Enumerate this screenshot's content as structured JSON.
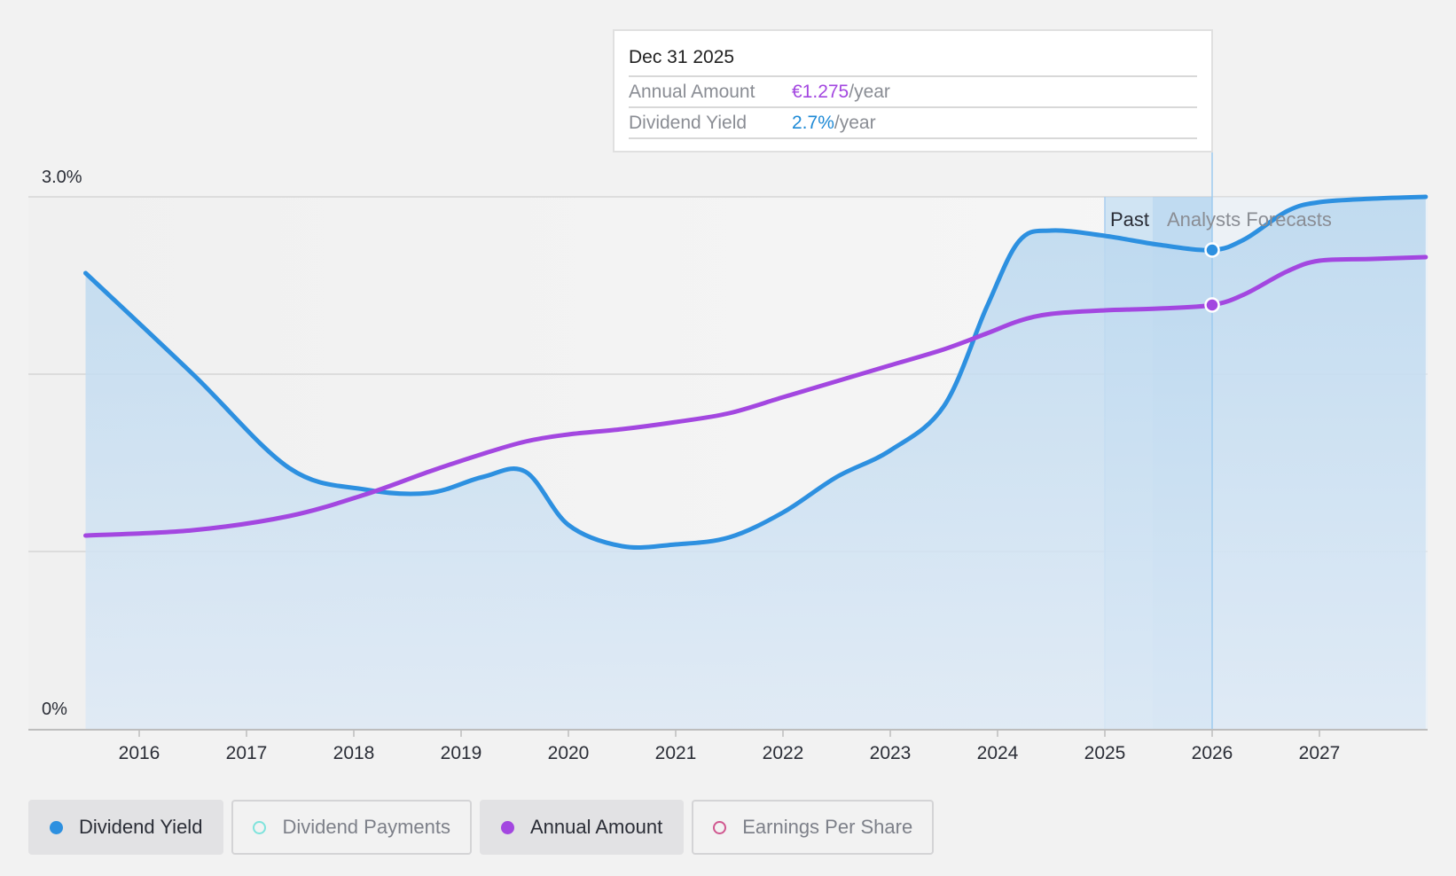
{
  "chart_data": {
    "type": "area",
    "y_tick_labels": [
      "3.0%",
      "0%"
    ],
    "ylim": [
      0,
      3.0
    ],
    "xlim": [
      2015.5,
      2027.99
    ],
    "x_tick_labels": [
      "2016",
      "2017",
      "2018",
      "2019",
      "2020",
      "2021",
      "2022",
      "2023",
      "2024",
      "2025",
      "2026",
      "2027"
    ],
    "past_label": "Past",
    "forecast_label": "Analysts Forecasts",
    "forecast_start": 2025.0,
    "cursor_x": 2026.0,
    "series": [
      {
        "name": "Dividend Yield",
        "color": "#2d90e0",
        "filled": true,
        "x": [
          2015.5,
          2016.5,
          2017.4,
          2018.1,
          2018.7,
          2019.2,
          2019.6,
          2020.0,
          2020.5,
          2021.0,
          2021.5,
          2022.0,
          2022.5,
          2023.0,
          2023.5,
          2023.9,
          2024.2,
          2024.5,
          2025.0,
          2025.5,
          2026.0,
          2026.3,
          2026.7,
          2027.0,
          2027.5,
          2027.99
        ],
        "y": [
          2.57,
          2.0,
          1.47,
          1.35,
          1.33,
          1.42,
          1.45,
          1.15,
          1.03,
          1.04,
          1.08,
          1.22,
          1.42,
          1.57,
          1.82,
          2.38,
          2.75,
          2.81,
          2.78,
          2.73,
          2.7,
          2.76,
          2.92,
          2.97,
          2.99,
          3.0
        ]
      },
      {
        "name": "Annual Amount",
        "color": "#a347e0",
        "filled": false,
        "x": [
          2015.5,
          2016.5,
          2017.4,
          2018.1,
          2018.7,
          2019.2,
          2019.6,
          2020.0,
          2020.5,
          2021.0,
          2021.5,
          2022.0,
          2022.5,
          2023.0,
          2023.5,
          2023.9,
          2024.2,
          2024.5,
          2025.0,
          2025.5,
          2026.0,
          2026.3,
          2026.7,
          2027.0,
          2027.5,
          2027.99
        ],
        "y": [
          1.09,
          1.12,
          1.2,
          1.32,
          1.45,
          1.55,
          1.62,
          1.66,
          1.69,
          1.73,
          1.78,
          1.87,
          1.96,
          2.05,
          2.14,
          2.23,
          2.3,
          2.34,
          2.36,
          2.37,
          2.39,
          2.45,
          2.58,
          2.64,
          2.65,
          2.66
        ]
      }
    ]
  },
  "tooltip": {
    "date": "Dec 31 2025",
    "rows": [
      {
        "label": "Annual Amount",
        "value": "€1.275",
        "unit": "/year"
      },
      {
        "label": "Dividend Yield",
        "value": "2.7%",
        "unit": "/year"
      }
    ]
  },
  "legend": [
    {
      "label": "Dividend Yield",
      "color": "#2d90e0",
      "active": true,
      "filled": true
    },
    {
      "label": "Dividend Payments",
      "color": "#7ee3dc",
      "active": false,
      "filled": false
    },
    {
      "label": "Annual Amount",
      "color": "#a347e0",
      "active": true,
      "filled": true
    },
    {
      "label": "Earnings Per Share",
      "color": "#d0578f",
      "active": false,
      "filled": false
    }
  ]
}
